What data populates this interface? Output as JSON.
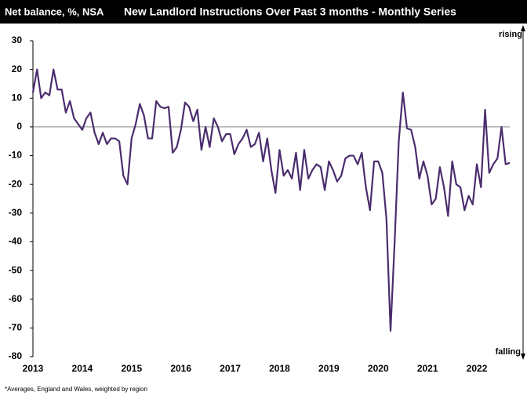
{
  "chart_data": {
    "type": "line",
    "header_left": "Net balance, %, NSA",
    "title": "New Landlord Instructions Over Past 3 months - Monthly Series",
    "top_label": "rising",
    "bottom_label": "falling",
    "footnote": "*Averages, England and Wales, weighted by region",
    "categories": [
      "2013",
      null,
      null,
      null,
      null,
      null,
      null,
      null,
      null,
      null,
      null,
      null,
      "2014",
      null,
      null,
      null,
      null,
      null,
      null,
      null,
      null,
      null,
      null,
      null,
      "2015",
      null,
      null,
      null,
      null,
      null,
      null,
      null,
      null,
      null,
      null,
      null,
      "2016",
      null,
      null,
      null,
      null,
      null,
      null,
      null,
      null,
      null,
      null,
      null,
      "2017",
      null,
      null,
      null,
      null,
      null,
      null,
      null,
      null,
      null,
      null,
      null,
      "2018",
      null,
      null,
      null,
      null,
      null,
      null,
      null,
      null,
      null,
      null,
      null,
      "2019",
      null,
      null,
      null,
      null,
      null,
      null,
      null,
      null,
      null,
      null,
      null,
      "2020",
      null,
      null,
      null,
      null,
      null,
      null,
      null,
      null,
      null,
      null,
      null,
      "2021",
      null,
      null,
      null,
      null,
      null,
      null,
      null,
      null,
      null,
      null,
      null,
      "2022",
      null,
      null,
      null,
      null,
      null,
      null,
      null,
      null
    ],
    "series": [
      {
        "name": "New Landlord Instructions",
        "color": "#4b2d6e",
        "values": [
          12,
          20,
          10,
          12,
          11,
          20,
          13,
          13,
          5,
          9,
          3,
          1,
          -1,
          3,
          5,
          -2,
          -6,
          -2,
          -6,
          -4,
          -4,
          -5,
          -17,
          -20,
          -4,
          1,
          8,
          4,
          -4,
          -4,
          9,
          7,
          6.5,
          7,
          -9,
          -7,
          -1,
          8.5,
          7,
          2,
          6,
          -8,
          0,
          -7,
          3,
          0,
          -5,
          -2.5,
          -2.5,
          -9.5,
          -6,
          -4,
          -1,
          -7,
          -6,
          -2,
          -12,
          -4,
          -15,
          -23,
          -8,
          -17,
          -15,
          -18,
          -9,
          -22,
          -8,
          -18,
          -15,
          -13,
          -14,
          -22,
          -12,
          -15,
          -19,
          -17,
          -11,
          -10,
          -10,
          -13,
          -9,
          -21,
          -29,
          -12,
          -12,
          -16,
          -32,
          -71,
          -40,
          -5,
          12,
          -0.5,
          -1,
          -7,
          -18,
          -12,
          -17,
          -27,
          -25,
          -14,
          -21,
          -31,
          -12,
          -20,
          -21,
          -29,
          -24,
          -27,
          -13,
          -21,
          6,
          -16,
          -13,
          -11,
          0,
          -13,
          -12.5
        ]
      }
    ],
    "ylim": [
      -80,
      30
    ],
    "yticks": [
      -80,
      -70,
      -60,
      -50,
      -40,
      -30,
      -20,
      -10,
      0,
      10,
      20,
      30
    ],
    "zero_line": true
  }
}
